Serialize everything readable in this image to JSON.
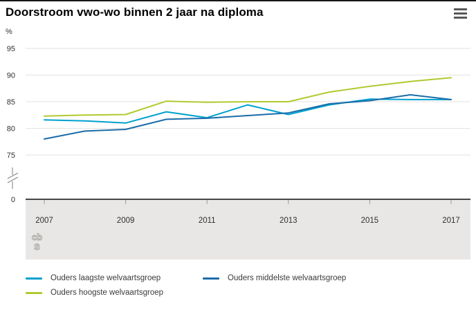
{
  "header": {
    "menu_icon": "hamburger-menu-icon"
  },
  "chart_data": {
    "type": "line",
    "title": "Doorstroom vwo-wo binnen 2 jaar na diploma",
    "ylabel": "%",
    "xlabel": "",
    "x": [
      2007,
      2008,
      2009,
      2010,
      2011,
      2012,
      2013,
      2014,
      2015,
      2016,
      2017
    ],
    "x_tick_labels": [
      "2007",
      "2009",
      "2011",
      "2013",
      "2015",
      "2017"
    ],
    "y_ticks": [
      95,
      90,
      85,
      80,
      75
    ],
    "y_zero_label": "0",
    "axis_break": true,
    "grid": true,
    "legend_position": "bottom",
    "series": [
      {
        "name": "Ouders laagste welvaartsgroep",
        "color": "#00a1cd",
        "values": [
          81.6,
          81.4,
          81.0,
          83.1,
          82.0,
          84.4,
          82.6,
          84.4,
          85.5,
          85.4,
          85.4
        ]
      },
      {
        "name": "Ouders middelste welvaartsgroep",
        "color": "#1a6ca9",
        "values": [
          78.0,
          79.5,
          79.8,
          81.7,
          81.9,
          82.4,
          82.9,
          84.6,
          85.2,
          86.3,
          85.4
        ]
      },
      {
        "name": "Ouders hoogste welvaartsgroep",
        "color": "#b1c92e",
        "values": [
          82.3,
          82.5,
          82.6,
          85.1,
          84.9,
          85.0,
          85.0,
          86.8,
          87.9,
          88.8,
          89.5
        ]
      }
    ]
  },
  "logo": {
    "text_top": "cb",
    "text_bottom": "s"
  },
  "colors": {
    "gridline": "#e3e2e0",
    "axis_line": "#474747",
    "tick": "#9a9a9a",
    "label": "#2f2f2f",
    "band_bg": "#e8e7e5",
    "logo_gray": "#a5a29e"
  }
}
